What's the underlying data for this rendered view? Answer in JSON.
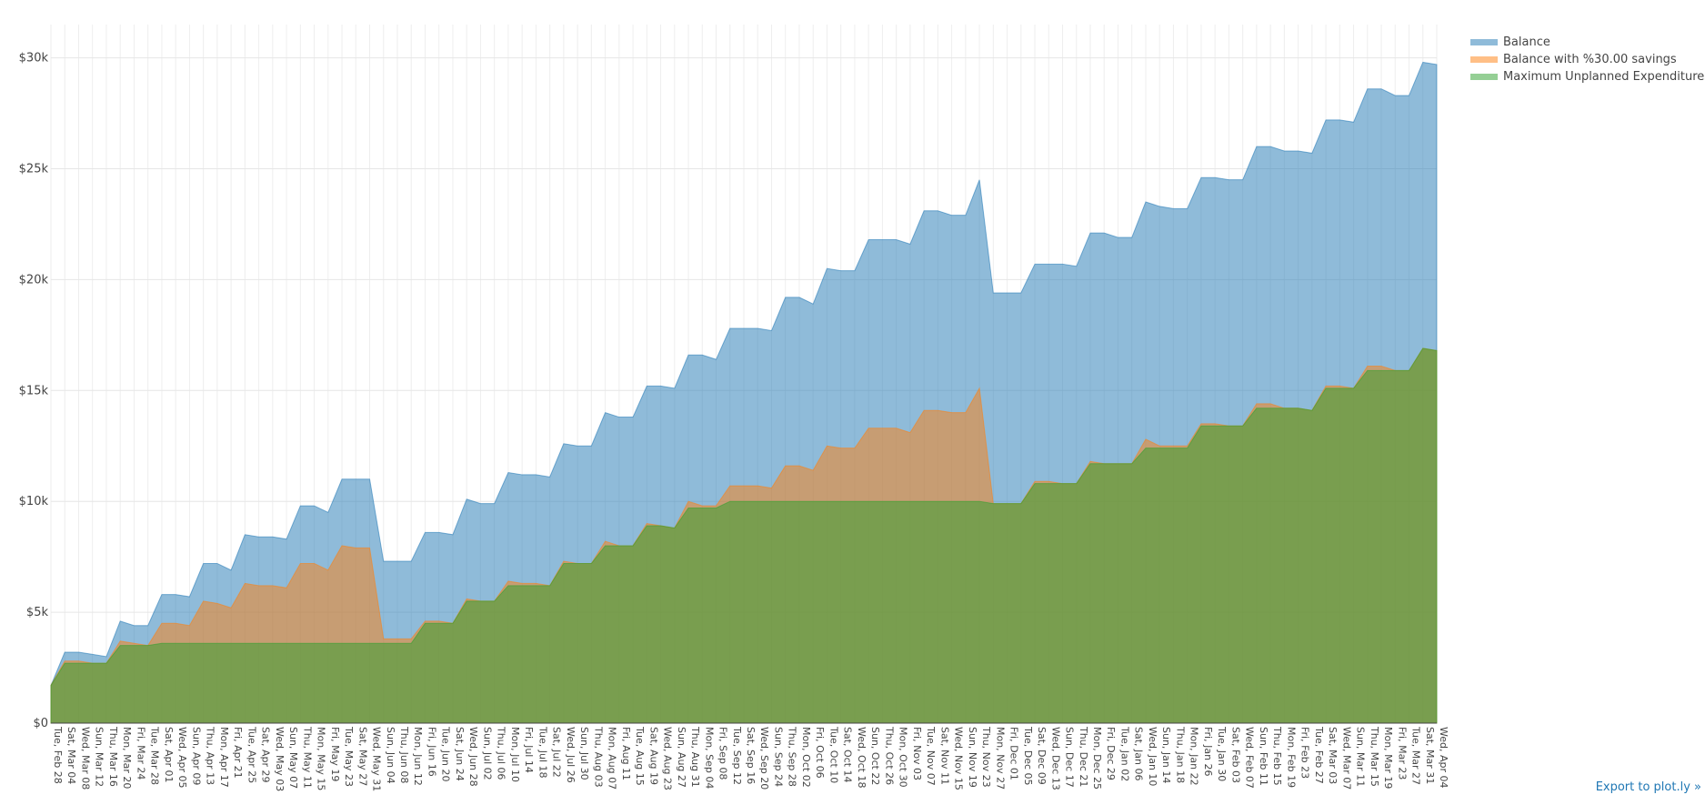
{
  "export_link": {
    "label": "Export to plot.ly »"
  },
  "chart_data": {
    "type": "area",
    "title": "",
    "xlabel": "",
    "ylabel": "",
    "ylim": [
      0,
      31500
    ],
    "y_ticks": [
      0,
      5000,
      10000,
      15000,
      20000,
      25000,
      30000
    ],
    "y_tick_labels": [
      "$0",
      "$5k",
      "$10k",
      "$15k",
      "$20k",
      "$25k",
      "$30k"
    ],
    "grid": true,
    "legend_position": "top-right",
    "x_labels": [
      "Tue, Feb 28",
      "Sat, Mar 04",
      "Wed, Mar 08",
      "Sun, Mar 12",
      "Thu, Mar 16",
      "Mon, Mar 20",
      "Fri, Mar 24",
      "Tue, Mar 28",
      "Sat, Apr 01",
      "Wed, Apr 05",
      "Sun, Apr 09",
      "Thu, Apr 13",
      "Mon, Apr 17",
      "Fri, Apr 21",
      "Tue, Apr 25",
      "Sat, Apr 29",
      "Wed, May 03",
      "Sun, May 07",
      "Thu, May 11",
      "Mon, May 15",
      "Fri, May 19",
      "Tue, May 23",
      "Sat, May 27",
      "Wed, May 31",
      "Sun, Jun 04",
      "Thu, Jun 08",
      "Mon, Jun 12",
      "Fri, Jun 16",
      "Tue, Jun 20",
      "Sat, Jun 24",
      "Wed, Jun 28",
      "Sun, Jul 02",
      "Thu, Jul 06",
      "Mon, Jul 10",
      "Fri, Jul 14",
      "Tue, Jul 18",
      "Sat, Jul 22",
      "Wed, Jul 26",
      "Sun, Jul 30",
      "Thu, Aug 03",
      "Mon, Aug 07",
      "Fri, Aug 11",
      "Tue, Aug 15",
      "Sat, Aug 19",
      "Wed, Aug 23",
      "Sun, Aug 27",
      "Thu, Aug 31",
      "Mon, Sep 04",
      "Fri, Sep 08",
      "Tue, Sep 12",
      "Sat, Sep 16",
      "Wed, Sep 20",
      "Sun, Sep 24",
      "Thu, Sep 28",
      "Mon, Oct 02",
      "Fri, Oct 06",
      "Tue, Oct 10",
      "Sat, Oct 14",
      "Wed, Oct 18",
      "Sun, Oct 22",
      "Thu, Oct 26",
      "Mon, Oct 30",
      "Fri, Nov 03",
      "Tue, Nov 07",
      "Sat, Nov 11",
      "Wed, Nov 15",
      "Sun, Nov 19",
      "Thu, Nov 23",
      "Mon, Nov 27",
      "Fri, Dec 01",
      "Tue, Dec 05",
      "Sat, Dec 09",
      "Wed, Dec 13",
      "Sun, Dec 17",
      "Thu, Dec 21",
      "Mon, Dec 25",
      "Fri, Dec 29",
      "Tue, Jan 02",
      "Sat, Jan 06",
      "Wed, Jan 10",
      "Sun, Jan 14",
      "Thu, Jan 18",
      "Mon, Jan 22",
      "Fri, Jan 26",
      "Tue, Jan 30",
      "Sat, Feb 03",
      "Wed, Feb 07",
      "Sun, Feb 11",
      "Thu, Feb 15",
      "Mon, Feb 19",
      "Fri, Feb 23",
      "Tue, Feb 27",
      "Sat, Mar 03",
      "Wed, Mar 07",
      "Sun, Mar 11",
      "Thu, Mar 15",
      "Mon, Mar 19",
      "Fri, Mar 23",
      "Tue, Mar 27",
      "Sat, Mar 31",
      "Wed, Apr 04"
    ],
    "series": [
      {
        "name": "Balance",
        "color": "#1f77b4",
        "values": [
          1700,
          3200,
          3200,
          3100,
          3000,
          4600,
          4400,
          4400,
          5800,
          5800,
          5700,
          7200,
          7200,
          6900,
          8500,
          8400,
          8400,
          8300,
          9800,
          9800,
          9500,
          11000,
          11000,
          11000,
          7300,
          7300,
          7300,
          8600,
          8600,
          8500,
          10100,
          9900,
          9900,
          11300,
          11200,
          11200,
          11100,
          12600,
          12500,
          12500,
          14000,
          13800,
          13800,
          15200,
          15200,
          15100,
          16600,
          16600,
          16400,
          17800,
          17800,
          17800,
          17700,
          19200,
          19200,
          18900,
          20500,
          20400,
          20400,
          21800,
          21800,
          21800,
          21600,
          23100,
          23100,
          22900,
          22900,
          24500,
          19400,
          19400,
          19400,
          20700,
          20700,
          20700,
          20600,
          22100,
          22100,
          21900,
          21900,
          23500,
          23300,
          23200,
          23200,
          24600,
          24600,
          24500,
          24500,
          26000,
          26000,
          25800,
          25800,
          25700,
          27200,
          27200,
          27100,
          28600,
          28600,
          28300,
          28300,
          29800,
          29700
        ]
      },
      {
        "name": "Balance with %30.00 savings",
        "color": "#ff7f0e",
        "values": [
          1700,
          2800,
          2800,
          2700,
          2700,
          3700,
          3600,
          3500,
          4500,
          4500,
          4400,
          5500,
          5400,
          5200,
          6300,
          6200,
          6200,
          6100,
          7200,
          7200,
          6900,
          8000,
          7900,
          7900,
          3800,
          3800,
          3800,
          4600,
          4600,
          4500,
          5600,
          5500,
          5500,
          6400,
          6300,
          6300,
          6200,
          7300,
          7200,
          7200,
          8200,
          8000,
          8000,
          9000,
          8900,
          8800,
          10000,
          9800,
          9800,
          10700,
          10700,
          10700,
          10600,
          11600,
          11600,
          11400,
          12500,
          12400,
          12400,
          13300,
          13300,
          13300,
          13100,
          14100,
          14100,
          14000,
          14000,
          15100,
          9900,
          9900,
          9900,
          10900,
          10900,
          10800,
          10800,
          11800,
          11700,
          11700,
          11700,
          12800,
          12500,
          12500,
          12500,
          13500,
          13500,
          13400,
          13400,
          14400,
          14400,
          14200,
          14200,
          14100,
          15200,
          15200,
          15100,
          16100,
          16100,
          15900,
          15900,
          16900,
          16800
        ]
      },
      {
        "name": "Maximum Unplanned Expenditures",
        "color": "#2ca02c",
        "values": [
          1700,
          2700,
          2700,
          2700,
          2700,
          3500,
          3500,
          3500,
          3600,
          3600,
          3600,
          3600,
          3600,
          3600,
          3600,
          3600,
          3600,
          3600,
          3600,
          3600,
          3600,
          3600,
          3600,
          3600,
          3600,
          3600,
          3600,
          4500,
          4500,
          4500,
          5500,
          5500,
          5500,
          6200,
          6200,
          6200,
          6200,
          7200,
          7200,
          7200,
          8000,
          8000,
          8000,
          8900,
          8900,
          8800,
          9700,
          9700,
          9700,
          10000,
          10000,
          10000,
          10000,
          10000,
          10000,
          10000,
          10000,
          10000,
          10000,
          10000,
          10000,
          10000,
          10000,
          10000,
          10000,
          10000,
          10000,
          10000,
          9900,
          9900,
          9900,
          10800,
          10800,
          10800,
          10800,
          11700,
          11700,
          11700,
          11700,
          12400,
          12400,
          12400,
          12400,
          13400,
          13400,
          13400,
          13400,
          14200,
          14200,
          14200,
          14200,
          14100,
          15100,
          15100,
          15100,
          15900,
          15900,
          15900,
          15900,
          16900,
          16800
        ]
      }
    ]
  }
}
